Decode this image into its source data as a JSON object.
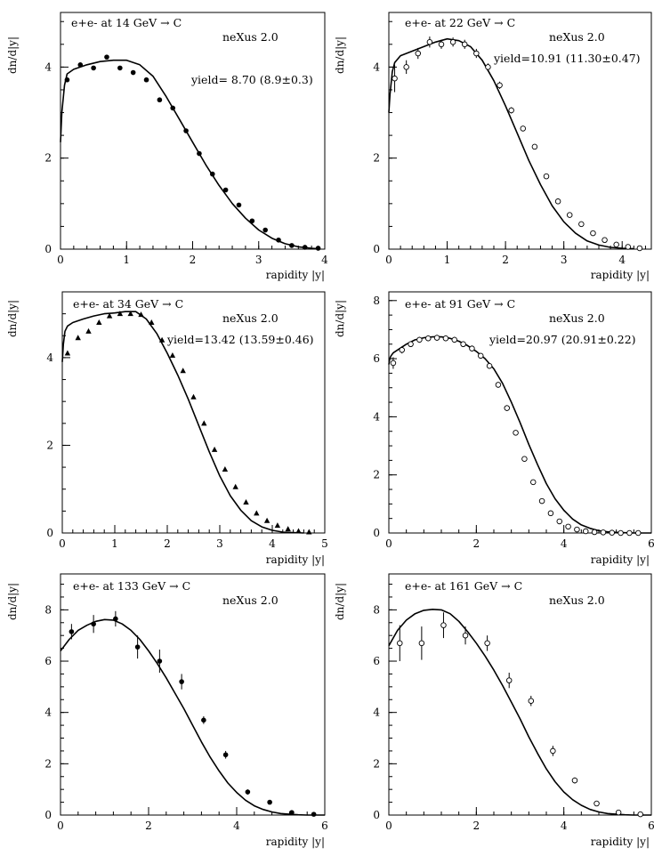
{
  "chart_data": [
    {
      "type": "line",
      "title": "e+e- at 14 GeV → C",
      "model_label": "neXus 2.0",
      "yield_label": "yield= 8.70  (8.9±0.3)",
      "xlabel": "rapidity |y|",
      "ylabel": "dn/d|y|",
      "xlim": [
        0,
        4
      ],
      "ylim": [
        0,
        5.2
      ],
      "xticks": [
        0,
        1,
        2,
        3,
        4
      ],
      "yticks": [
        0,
        2,
        4
      ],
      "marker": "filled-circle",
      "series": [
        {
          "name": "neXus 2.0",
          "x": [
            0.0,
            0.02,
            0.06,
            0.1,
            0.2,
            0.4,
            0.6,
            0.8,
            1.0,
            1.2,
            1.4,
            1.6,
            1.8,
            2.0,
            2.2,
            2.4,
            2.6,
            2.8,
            3.0,
            3.2,
            3.4,
            3.6,
            3.8,
            3.9
          ],
          "y": [
            2.35,
            3.0,
            3.6,
            3.85,
            3.95,
            4.05,
            4.12,
            4.15,
            4.15,
            4.05,
            3.8,
            3.35,
            2.85,
            2.35,
            1.85,
            1.4,
            1.0,
            0.68,
            0.42,
            0.24,
            0.12,
            0.05,
            0.02,
            0.01
          ]
        },
        {
          "name": "data",
          "x": [
            0.1,
            0.3,
            0.5,
            0.7,
            0.9,
            1.1,
            1.3,
            1.5,
            1.7,
            1.9,
            2.1,
            2.3,
            2.5,
            2.7,
            2.9,
            3.1,
            3.3,
            3.5,
            3.7,
            3.9
          ],
          "y": [
            3.72,
            4.05,
            3.98,
            4.22,
            3.98,
            3.88,
            3.72,
            3.28,
            3.1,
            2.6,
            2.1,
            1.65,
            1.3,
            0.97,
            0.62,
            0.42,
            0.2,
            0.08,
            0.04,
            0.02
          ],
          "err": [
            0,
            0,
            0,
            0,
            0,
            0,
            0,
            0,
            0,
            0,
            0,
            0,
            0,
            0,
            0,
            0,
            0,
            0,
            0,
            0
          ]
        }
      ]
    },
    {
      "type": "line",
      "title": "e+e- at 22 GeV → C",
      "model_label": "neXus 2.0",
      "yield_label": "yield=10.91  (11.30±0.47)",
      "xlabel": "rapidity |y|",
      "ylabel": "dn/d|y|",
      "xlim": [
        0,
        4.5
      ],
      "ylim": [
        0,
        5.2
      ],
      "xticks": [
        0,
        1,
        2,
        3,
        4
      ],
      "yticks": [
        0,
        2,
        4
      ],
      "marker": "open-circle",
      "series": [
        {
          "name": "neXus 2.0",
          "x": [
            0.0,
            0.02,
            0.06,
            0.1,
            0.2,
            0.4,
            0.6,
            0.8,
            1.0,
            1.2,
            1.4,
            1.6,
            1.8,
            2.0,
            2.2,
            2.4,
            2.6,
            2.8,
            3.0,
            3.2,
            3.4,
            3.6,
            3.8,
            4.0,
            4.2
          ],
          "y": [
            3.0,
            3.4,
            3.9,
            4.1,
            4.25,
            4.35,
            4.45,
            4.55,
            4.62,
            4.58,
            4.45,
            4.15,
            3.7,
            3.15,
            2.55,
            1.95,
            1.42,
            0.95,
            0.6,
            0.35,
            0.18,
            0.09,
            0.04,
            0.02,
            0.01
          ]
        },
        {
          "name": "data",
          "x": [
            0.1,
            0.3,
            0.5,
            0.7,
            0.9,
            1.1,
            1.3,
            1.5,
            1.7,
            1.9,
            2.1,
            2.3,
            2.5,
            2.7,
            2.9,
            3.1,
            3.3,
            3.5,
            3.7,
            3.9,
            4.1,
            4.3
          ],
          "y": [
            3.75,
            4.0,
            4.3,
            4.55,
            4.5,
            4.55,
            4.5,
            4.3,
            4.0,
            3.6,
            3.05,
            2.65,
            2.25,
            1.6,
            1.05,
            0.75,
            0.55,
            0.35,
            0.2,
            0.1,
            0.05,
            0.02
          ],
          "err": [
            0.3,
            0.15,
            0.12,
            0.12,
            0.1,
            0.1,
            0.1,
            0.1,
            0.08,
            0.08,
            0.07,
            0.06,
            0.05,
            0.05,
            0.04,
            0.03,
            0.03,
            0.02,
            0.02,
            0.02,
            0.01,
            0.01
          ]
        }
      ]
    },
    {
      "type": "line",
      "title": "e+e- at 34 GeV → C",
      "model_label": "neXus 2.0",
      "yield_label": "yield=13.42  (13.59±0.46)",
      "xlabel": "rapidity |y|",
      "ylabel": "dn/d|y|",
      "xlim": [
        0,
        5
      ],
      "ylim": [
        0,
        5.5
      ],
      "xticks": [
        0,
        1,
        2,
        3,
        4,
        5
      ],
      "yticks": [
        0,
        2,
        4
      ],
      "marker": "filled-triangle",
      "series": [
        {
          "name": "neXus 2.0",
          "x": [
            0.0,
            0.02,
            0.05,
            0.1,
            0.2,
            0.4,
            0.6,
            0.8,
            1.0,
            1.2,
            1.4,
            1.6,
            1.8,
            2.0,
            2.2,
            2.4,
            2.6,
            2.8,
            3.0,
            3.2,
            3.4,
            3.6,
            3.8,
            4.0,
            4.2,
            4.4,
            4.6
          ],
          "y": [
            3.9,
            4.3,
            4.6,
            4.72,
            4.8,
            4.88,
            4.95,
            5.0,
            5.02,
            5.05,
            5.05,
            4.88,
            4.55,
            4.1,
            3.6,
            3.05,
            2.45,
            1.85,
            1.3,
            0.85,
            0.52,
            0.28,
            0.14,
            0.06,
            0.02,
            0.01,
            0.0
          ]
        },
        {
          "name": "data",
          "x": [
            0.1,
            0.3,
            0.5,
            0.7,
            0.9,
            1.1,
            1.3,
            1.5,
            1.7,
            1.9,
            2.1,
            2.3,
            2.5,
            2.7,
            2.9,
            3.1,
            3.3,
            3.5,
            3.7,
            3.9,
            4.1,
            4.3,
            4.5,
            4.7
          ],
          "y": [
            4.1,
            4.45,
            4.6,
            4.8,
            4.95,
            5.0,
            5.0,
            4.98,
            4.8,
            4.4,
            4.05,
            3.7,
            3.1,
            2.5,
            1.9,
            1.45,
            1.05,
            0.7,
            0.45,
            0.28,
            0.17,
            0.09,
            0.04,
            0.02
          ],
          "err": [
            0,
            0,
            0,
            0,
            0,
            0,
            0,
            0,
            0,
            0,
            0,
            0,
            0,
            0,
            0,
            0,
            0,
            0,
            0,
            0,
            0,
            0,
            0,
            0
          ]
        }
      ]
    },
    {
      "type": "line",
      "title": "e+e- at 91 GeV → C",
      "model_label": "neXus 2.0",
      "yield_label": "yield=20.97  (20.91±0.22)",
      "xlabel": "rapidity |y|",
      "ylabel": "dn/d|y|",
      "xlim": [
        0,
        6
      ],
      "ylim": [
        0,
        8.3
      ],
      "xticks": [
        0,
        2,
        4,
        6
      ],
      "yticks": [
        0,
        2,
        4,
        6,
        8
      ],
      "marker": "open-circle",
      "series": [
        {
          "name": "neXus 2.0",
          "x": [
            0.0,
            0.02,
            0.05,
            0.1,
            0.2,
            0.4,
            0.6,
            0.8,
            1.0,
            1.2,
            1.4,
            1.6,
            1.8,
            2.0,
            2.2,
            2.4,
            2.6,
            2.8,
            3.0,
            3.2,
            3.4,
            3.6,
            3.8,
            4.0,
            4.2,
            4.4,
            4.6,
            4.8,
            5.0,
            5.2,
            5.4,
            5.6,
            5.8,
            6.0
          ],
          "y": [
            5.8,
            6.0,
            6.1,
            6.2,
            6.3,
            6.5,
            6.65,
            6.72,
            6.75,
            6.75,
            6.7,
            6.6,
            6.45,
            6.25,
            6.0,
            5.65,
            5.15,
            4.5,
            3.8,
            3.05,
            2.35,
            1.7,
            1.18,
            0.78,
            0.48,
            0.28,
            0.16,
            0.08,
            0.04,
            0.02,
            0.01,
            0.0,
            0.0,
            0.0
          ]
        },
        {
          "name": "data",
          "x": [
            0.1,
            0.3,
            0.5,
            0.7,
            0.9,
            1.1,
            1.3,
            1.5,
            1.7,
            1.9,
            2.1,
            2.3,
            2.5,
            2.7,
            2.9,
            3.1,
            3.3,
            3.5,
            3.7,
            3.9,
            4.1,
            4.3,
            4.5,
            4.7,
            4.9,
            5.1,
            5.3,
            5.5,
            5.7
          ],
          "y": [
            5.85,
            6.3,
            6.5,
            6.65,
            6.7,
            6.72,
            6.7,
            6.65,
            6.5,
            6.35,
            6.1,
            5.75,
            5.1,
            4.3,
            3.45,
            2.55,
            1.75,
            1.1,
            0.68,
            0.4,
            0.22,
            0.12,
            0.06,
            0.03,
            0.02,
            0.01,
            0.0,
            0.0,
            0.0
          ],
          "err": [
            0.2,
            0.12,
            0.1,
            0.1,
            0.1,
            0.1,
            0.1,
            0.1,
            0.1,
            0.1,
            0.1,
            0.1,
            0.1,
            0.1,
            0.08,
            0.07,
            0.06,
            0.05,
            0.04,
            0.03,
            0.02,
            0.02,
            0.01,
            0.01,
            0.01,
            0.0,
            0.0,
            0.0,
            0.0
          ]
        }
      ]
    },
    {
      "type": "line",
      "title": "e+e- at 133 GeV → C",
      "model_label": "neXus 2.0",
      "yield_label": "",
      "xlabel": "rapidity |y|",
      "ylabel": "dn/d|y|",
      "xlim": [
        0,
        6
      ],
      "ylim": [
        0,
        9.4
      ],
      "xticks": [
        0,
        2,
        4,
        6
      ],
      "yticks": [
        0,
        2,
        4,
        6,
        8
      ],
      "marker": "filled-circle",
      "series": [
        {
          "name": "neXus 2.0",
          "x": [
            0.0,
            0.2,
            0.4,
            0.6,
            0.8,
            1.0,
            1.2,
            1.4,
            1.6,
            1.8,
            2.0,
            2.2,
            2.4,
            2.6,
            2.8,
            3.0,
            3.2,
            3.4,
            3.6,
            3.8,
            4.0,
            4.2,
            4.4,
            4.6,
            4.8,
            5.0,
            5.2,
            5.4,
            5.6,
            5.8,
            6.0
          ],
          "y": [
            6.4,
            6.85,
            7.2,
            7.4,
            7.55,
            7.62,
            7.6,
            7.45,
            7.2,
            6.85,
            6.4,
            5.9,
            5.35,
            4.75,
            4.15,
            3.5,
            2.85,
            2.25,
            1.72,
            1.25,
            0.88,
            0.58,
            0.36,
            0.22,
            0.12,
            0.06,
            0.03,
            0.01,
            0.0,
            0.0,
            0.0
          ]
        },
        {
          "name": "data",
          "x": [
            0.25,
            0.75,
            1.25,
            1.75,
            2.25,
            2.75,
            3.25,
            3.75,
            4.25,
            4.75,
            5.25,
            5.75
          ],
          "y": [
            7.15,
            7.45,
            7.65,
            6.55,
            6.0,
            5.2,
            3.7,
            2.35,
            0.9,
            0.5,
            0.1,
            0.03
          ],
          "err": [
            0.3,
            0.35,
            0.3,
            0.45,
            0.45,
            0.3,
            0.15,
            0.15,
            0.1,
            0.08,
            0.05,
            0.02
          ]
        }
      ]
    },
    {
      "type": "line",
      "title": "e+e- at 161 GeV → C",
      "model_label": "neXus 2.0",
      "yield_label": "",
      "xlabel": "rapidity |y|",
      "ylabel": "dn/d|y|",
      "xlim": [
        0,
        6
      ],
      "ylim": [
        0,
        9.4
      ],
      "xticks": [
        0,
        2,
        4,
        6
      ],
      "yticks": [
        0,
        2,
        4,
        6,
        8
      ],
      "marker": "open-circle",
      "series": [
        {
          "name": "neXus 2.0",
          "x": [
            0.0,
            0.2,
            0.4,
            0.6,
            0.8,
            1.0,
            1.2,
            1.4,
            1.6,
            1.8,
            2.0,
            2.2,
            2.4,
            2.6,
            2.8,
            3.0,
            3.2,
            3.4,
            3.6,
            3.8,
            4.0,
            4.2,
            4.4,
            4.6,
            4.8,
            5.0,
            5.2,
            5.4,
            5.6,
            5.8,
            6.0
          ],
          "y": [
            6.6,
            7.2,
            7.6,
            7.85,
            7.98,
            8.02,
            8.0,
            7.85,
            7.55,
            7.15,
            6.7,
            6.2,
            5.65,
            5.05,
            4.4,
            3.75,
            3.05,
            2.4,
            1.8,
            1.3,
            0.9,
            0.6,
            0.38,
            0.22,
            0.12,
            0.06,
            0.03,
            0.01,
            0.0,
            0.0,
            0.0
          ]
        },
        {
          "name": "data",
          "x": [
            0.25,
            0.75,
            1.25,
            1.75,
            2.25,
            2.75,
            3.25,
            3.75,
            4.25,
            4.75,
            5.25,
            5.75
          ],
          "y": [
            6.7,
            6.7,
            7.4,
            7.0,
            6.7,
            5.25,
            4.45,
            2.5,
            1.35,
            0.45,
            0.1,
            0.03
          ],
          "err": [
            0.7,
            0.65,
            0.5,
            0.35,
            0.3,
            0.3,
            0.2,
            0.2,
            0.12,
            0.08,
            0.05,
            0.02
          ]
        }
      ]
    }
  ]
}
